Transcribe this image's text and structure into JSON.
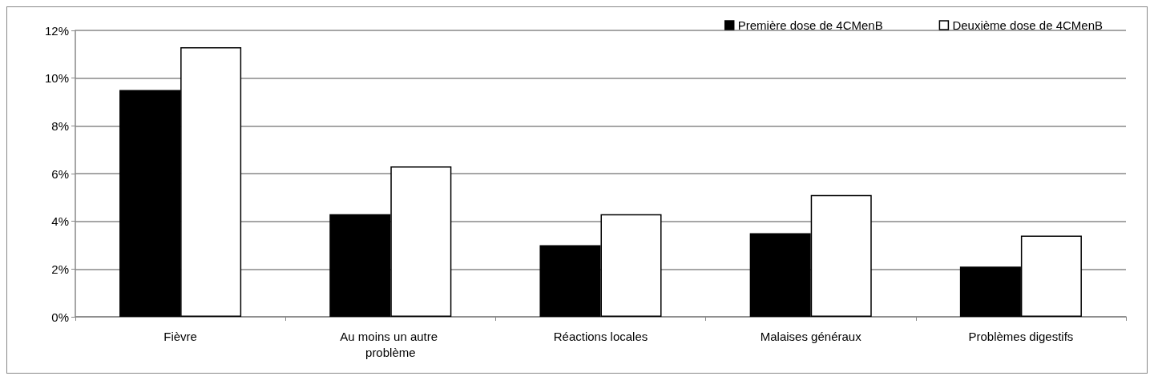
{
  "chart_data": {
    "type": "bar",
    "categories": [
      "Fièvre",
      "Au moins un autre problème",
      "Réactions locales",
      "Malaises généraux",
      "Problèmes digestifs"
    ],
    "series": [
      {
        "name": "Première dose de 4CMenB",
        "color": "#000000",
        "values": [
          9.5,
          4.3,
          3.0,
          3.5,
          2.1
        ]
      },
      {
        "name": "Deuxième dose de 4CMenB",
        "color": "#ffffff",
        "values": [
          11.3,
          6.3,
          4.3,
          5.1,
          3.4
        ]
      }
    ],
    "ylim": [
      0,
      12
    ],
    "yticks": [
      {
        "value": 0,
        "label": "0%"
      },
      {
        "value": 2,
        "label": "2%"
      },
      {
        "value": 4,
        "label": "4%"
      },
      {
        "value": 6,
        "label": "6%"
      },
      {
        "value": 8,
        "label": "8%"
      },
      {
        "value": 10,
        "label": "10%"
      },
      {
        "value": 12,
        "label": "12%"
      }
    ],
    "grid": "y",
    "legend": "top right"
  }
}
